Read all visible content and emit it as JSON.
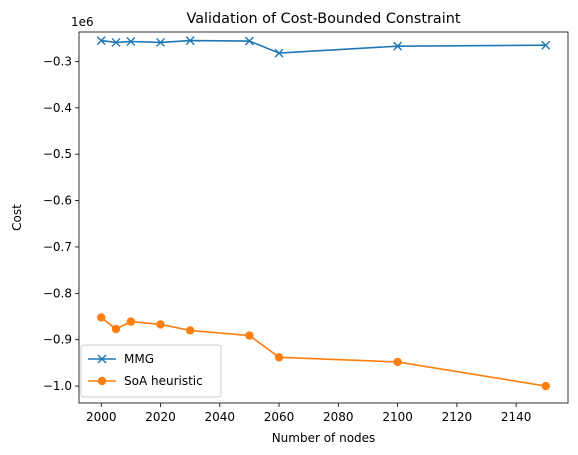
{
  "chart_data": {
    "type": "line",
    "title": "Validation of Cost-Bounded Constraint",
    "xlabel": "Number of nodes",
    "ylabel": "Cost",
    "y_offset_label": "1e6",
    "xlim": [
      1992.5,
      2157.5
    ],
    "ylim": [
      -1.0365,
      -0.2365
    ],
    "x_ticks": [
      2000,
      2020,
      2040,
      2060,
      2080,
      2100,
      2120,
      2140
    ],
    "x_tick_labels": [
      "2000",
      "2020",
      "2040",
      "2060",
      "2080",
      "2100",
      "2120",
      "2140"
    ],
    "y_ticks": [
      -1.0,
      -0.9,
      -0.8,
      -0.7,
      -0.6,
      -0.5,
      -0.4,
      -0.3
    ],
    "y_tick_labels": [
      "−1.0",
      "−0.9",
      "−0.8",
      "−0.7",
      "−0.6",
      "−0.5",
      "−0.4",
      "−0.3"
    ],
    "grid": false,
    "legend_position": "lower-left",
    "x": [
      2000,
      2005,
      2010,
      2020,
      2030,
      2050,
      2060,
      2100,
      2150
    ],
    "series": [
      {
        "name": "MMG",
        "color": "#1f77b4",
        "marker": "x",
        "values": [
          -0.255,
          -0.259,
          -0.257,
          -0.259,
          -0.255,
          -0.256,
          -0.282,
          -0.267,
          -0.265
        ]
      },
      {
        "name": "SoA heuristic",
        "color": "#ff7f0e",
        "marker": "o",
        "values": [
          -0.852,
          -0.877,
          -0.861,
          -0.867,
          -0.88,
          -0.891,
          -0.938,
          -0.948,
          -1.0
        ]
      }
    ]
  }
}
